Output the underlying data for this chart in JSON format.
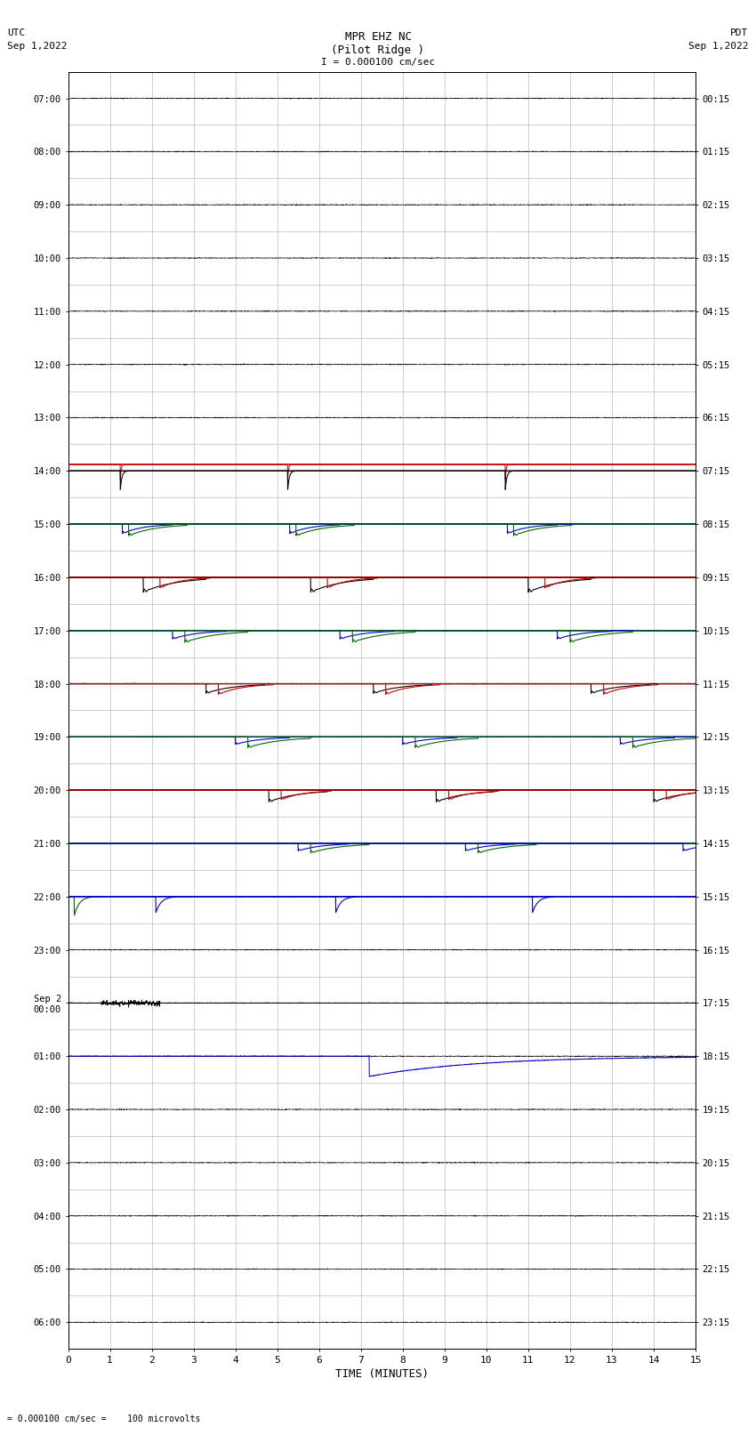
{
  "title_line1": "MPR EHZ NC",
  "title_line2": "(Pilot Ridge )",
  "scale_label": "I = 0.000100 cm/sec",
  "left_timezone": "UTC",
  "left_date": "Sep 1,2022",
  "right_timezone": "PDT",
  "right_date": "Sep 1,2022",
  "xlabel": "TIME (MINUTES)",
  "footer_label": "= 0.000100 cm/sec =    100 microvolts",
  "xlim": [
    0,
    15
  ],
  "x_ticks": [
    0,
    1,
    2,
    3,
    4,
    5,
    6,
    7,
    8,
    9,
    10,
    11,
    12,
    13,
    14,
    15
  ],
  "left_time_labels": [
    "07:00",
    "08:00",
    "09:00",
    "10:00",
    "11:00",
    "12:00",
    "13:00",
    "14:00",
    "15:00",
    "16:00",
    "17:00",
    "18:00",
    "19:00",
    "20:00",
    "21:00",
    "22:00",
    "23:00",
    "Sep 2\n00:00",
    "01:00",
    "02:00",
    "03:00",
    "04:00",
    "05:00",
    "06:00"
  ],
  "right_time_labels": [
    "00:15",
    "01:15",
    "02:15",
    "03:15",
    "04:15",
    "05:15",
    "06:15",
    "07:15",
    "08:15",
    "09:15",
    "10:15",
    "11:15",
    "12:15",
    "13:15",
    "14:15",
    "15:15",
    "16:15",
    "17:15",
    "18:15",
    "19:15",
    "20:15",
    "21:15",
    "22:15",
    "23:15"
  ],
  "n_rows": 24,
  "background_color": "#ffffff",
  "grid_color": "#aaaaaa",
  "trace_color_black": "#000000",
  "trace_color_blue": "#0000cc",
  "trace_color_red": "#cc0000",
  "trace_color_green": "#006600",
  "fig_width": 8.5,
  "fig_height": 16.13
}
